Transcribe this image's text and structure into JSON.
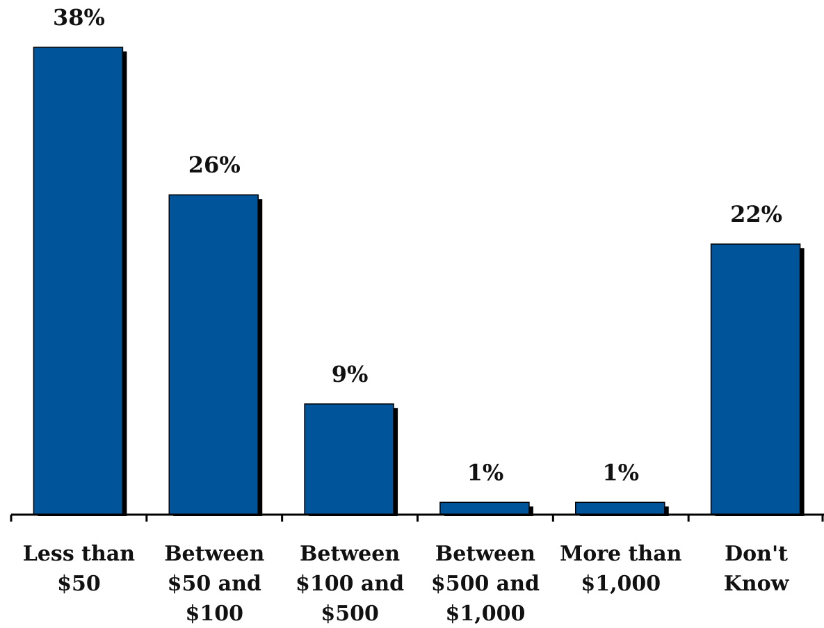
{
  "chart_data": {
    "type": "bar",
    "title": "",
    "xlabel": "",
    "ylabel": "",
    "ylim": [
      0,
      38
    ],
    "grid": false,
    "legend": "none",
    "categories": [
      [
        "Less than",
        "$50"
      ],
      [
        "Between",
        "$50 and",
        "$100"
      ],
      [
        "Between",
        "$100 and",
        "$500"
      ],
      [
        "Between",
        "$500 and",
        "$1,000"
      ],
      [
        "More than",
        "$1,000"
      ],
      [
        "Don't",
        "Know"
      ]
    ],
    "values": [
      38,
      26,
      9,
      1,
      1,
      22
    ],
    "value_labels": [
      "38%",
      "26%",
      "9%",
      "1%",
      "1%",
      "22%"
    ],
    "colors": {
      "bar": "#00549A",
      "shadow": "#000000",
      "axis": "#000000"
    }
  }
}
